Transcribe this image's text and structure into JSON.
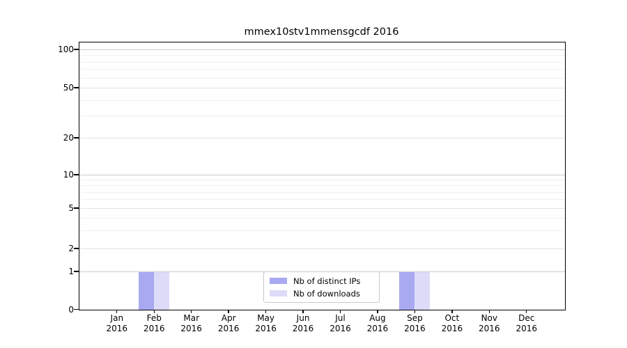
{
  "title": "mmex10stv1mmensgcdf 2016",
  "chart_data": {
    "type": "bar",
    "title": "mmex10stv1mmensgcdf 2016",
    "x_months": [
      "Jan",
      "Feb",
      "Mar",
      "Apr",
      "May",
      "Jun",
      "Jul",
      "Aug",
      "Sep",
      "Oct",
      "Nov",
      "Dec"
    ],
    "x_year": "2016",
    "categories": [
      "Jan 2016",
      "Feb 2016",
      "Mar 2016",
      "Apr 2016",
      "May 2016",
      "Jun 2016",
      "Jul 2016",
      "Aug 2016",
      "Sep 2016",
      "Oct 2016",
      "Nov 2016",
      "Dec 2016"
    ],
    "series": [
      {
        "name": "Nb of distinct IPs",
        "color": "#a9a9f2",
        "values": [
          0,
          1,
          0,
          0,
          0,
          0,
          0,
          0,
          1,
          0,
          0,
          0
        ]
      },
      {
        "name": "Nb of downloads",
        "color": "#dcdcf8",
        "values": [
          0,
          1,
          0,
          0,
          0,
          0,
          0,
          0,
          1,
          0,
          0,
          0
        ]
      }
    ],
    "yscale": "log-like with 0 baseline",
    "ylim": [
      0,
      100
    ],
    "y_ticks": [
      0,
      1,
      2,
      5,
      10,
      20,
      50,
      100
    ],
    "y_major_ticks": [
      1,
      10,
      100
    ],
    "y_minor_gridlines": [
      3,
      4,
      6,
      7,
      8,
      9,
      30,
      40,
      60,
      70,
      80,
      90
    ],
    "grid": "horizontal gridlines, major and minor",
    "legend_position": "inside bottom-center",
    "xlabel": "",
    "ylabel": ""
  }
}
